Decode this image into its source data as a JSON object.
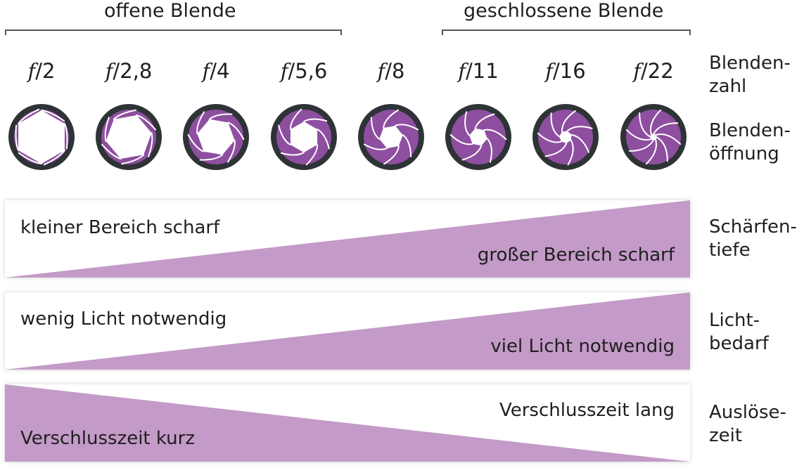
{
  "groups": {
    "open_label": "offene Blende",
    "closed_label": "geschlossene Blende"
  },
  "f_numbers": [
    {
      "prefix": "f",
      "value": "/2"
    },
    {
      "prefix": "f",
      "value": "/2,8"
    },
    {
      "prefix": "f",
      "value": "/4"
    },
    {
      "prefix": "f",
      "value": "/5,6"
    },
    {
      "prefix": "f",
      "value": "/8"
    },
    {
      "prefix": "f",
      "value": "/11"
    },
    {
      "prefix": "f",
      "value": "/16"
    },
    {
      "prefix": "f",
      "value": "/22"
    }
  ],
  "row_labels": {
    "blendenzahl": {
      "line1": "Blenden-",
      "line2": "zahl"
    },
    "blendenoeffnung": {
      "line1": "Blenden-",
      "line2": "öffnung"
    },
    "schaerfentiefe": {
      "line1": "Schärfen-",
      "line2": "tiefe"
    },
    "lichtbedarf": {
      "line1": "Licht-",
      "line2": "bedarf"
    },
    "ausloesezeit": {
      "line1": "Auslöse-",
      "line2": "zeit"
    }
  },
  "bands": {
    "schaerfentiefe": {
      "left_text": "kleiner Bereich scharf",
      "right_text": "großer Bereich scharf"
    },
    "lichtbedarf": {
      "left_text": "wenig Licht notwendig",
      "right_text": "viel Licht notwendig"
    },
    "ausloesezeit": {
      "left_text": "Verschlusszeit kurz",
      "right_text": "Verschlusszeit lang"
    }
  },
  "colors": {
    "ring": "#2e3336",
    "blade": "#8e4fa0",
    "band_fill": "#c49ac8",
    "opening": "#ffffff"
  }
}
